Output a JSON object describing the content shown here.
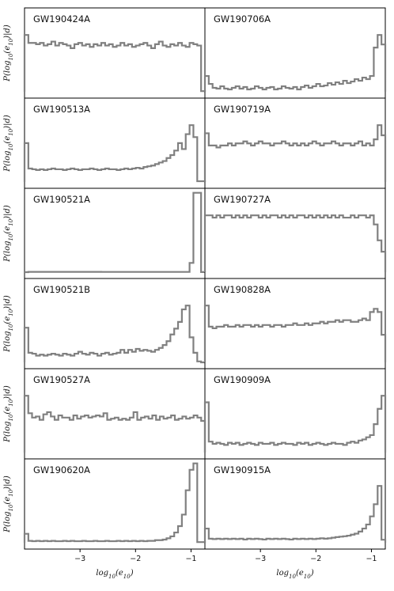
{
  "chart_data": [
    {
      "type": "step",
      "title": "GW190424A",
      "ylabel": "P(log10(e10)|d)",
      "x_edges_range": [
        -4.0,
        -0.75
      ],
      "values": [
        4.3,
        3.7,
        3.7,
        3.6,
        3.7,
        3.5,
        3.6,
        3.8,
        3.5,
        3.7,
        3.6,
        3.5,
        3.3,
        3.6,
        3.7,
        3.5,
        3.6,
        3.4,
        3.6,
        3.5,
        3.7,
        3.5,
        3.6,
        3.4,
        3.5,
        3.7,
        3.5,
        3.6,
        3.4,
        3.5,
        3.6,
        3.7,
        3.5,
        3.3,
        3.6,
        3.8,
        3.5,
        3.4,
        3.6,
        3.5,
        3.7,
        3.5,
        3.4,
        3.7,
        3.6,
        3.5,
        0.05
      ]
    },
    {
      "type": "step",
      "title": "GW190706A",
      "ylabel": "",
      "x_edges_range": [
        -4.0,
        -0.75
      ],
      "values": [
        1.0,
        0.5,
        0.25,
        0.2,
        0.35,
        0.2,
        0.15,
        0.25,
        0.35,
        0.2,
        0.3,
        0.15,
        0.2,
        0.35,
        0.25,
        0.15,
        0.25,
        0.3,
        0.15,
        0.2,
        0.35,
        0.25,
        0.2,
        0.3,
        0.15,
        0.3,
        0.4,
        0.25,
        0.35,
        0.5,
        0.35,
        0.4,
        0.55,
        0.45,
        0.6,
        0.5,
        0.7,
        0.55,
        0.65,
        0.8,
        0.7,
        0.9,
        0.8,
        1.0,
        2.8,
        3.6,
        3.0
      ]
    },
    {
      "type": "step",
      "title": "GW190513A",
      "ylabel": "P(log10(e10)|d)",
      "x_edges_range": [
        -4.0,
        -0.75
      ],
      "values": [
        2.6,
        0.9,
        0.85,
        0.8,
        0.85,
        0.8,
        0.85,
        0.9,
        0.85,
        0.85,
        0.8,
        0.85,
        0.9,
        0.85,
        0.8,
        0.85,
        0.85,
        0.9,
        0.85,
        0.8,
        0.85,
        0.9,
        0.85,
        0.85,
        0.8,
        0.85,
        0.9,
        0.85,
        0.9,
        0.95,
        0.9,
        1.0,
        1.05,
        1.1,
        1.2,
        1.3,
        1.4,
        1.6,
        1.8,
        2.1,
        2.6,
        2.2,
        3.2,
        3.8,
        3.0,
        0.05,
        0.05
      ]
    },
    {
      "type": "step",
      "title": "GW190719A",
      "ylabel": "",
      "x_edges_range": [
        -4.0,
        -0.75
      ],
      "values": [
        2.4,
        1.8,
        1.8,
        1.7,
        1.8,
        1.8,
        1.9,
        1.8,
        1.9,
        1.9,
        2.0,
        1.9,
        1.8,
        1.9,
        2.0,
        1.9,
        1.9,
        1.8,
        1.9,
        1.9,
        2.0,
        1.9,
        1.8,
        1.9,
        1.8,
        1.9,
        1.8,
        1.9,
        2.0,
        1.9,
        1.8,
        1.9,
        1.9,
        2.0,
        1.9,
        1.8,
        1.9,
        1.9,
        1.8,
        1.9,
        2.0,
        1.8,
        1.9,
        1.8,
        2.1,
        2.8,
        2.3
      ]
    },
    {
      "type": "step",
      "title": "GW190521A",
      "ylabel": "P(log10(e10)|d)",
      "x_edges_range": [
        -4.0,
        -0.75
      ],
      "values": [
        0.0,
        0.05,
        0.05,
        0.05,
        0.05,
        0.05,
        0.05,
        0.05,
        0.05,
        0.05,
        0.05,
        0.05,
        0.05,
        0.05,
        0.05,
        0.05,
        0.05,
        0.05,
        0.05,
        0.05,
        0.04,
        0.04,
        0.04,
        0.04,
        0.04,
        0.04,
        0.04,
        0.04,
        0.04,
        0.04,
        0.04,
        0.04,
        0.04,
        0.04,
        0.04,
        0.04,
        0.04,
        0.04,
        0.04,
        0.04,
        0.04,
        0.04,
        0.04,
        1.4,
        12.0,
        12.0,
        0.02
      ]
    },
    {
      "type": "step",
      "title": "GW190727A",
      "ylabel": "",
      "x_edges_range": [
        -4.0,
        -0.75
      ],
      "values": [
        2.5,
        2.5,
        2.4,
        2.5,
        2.4,
        2.5,
        2.5,
        2.4,
        2.5,
        2.4,
        2.5,
        2.4,
        2.5,
        2.5,
        2.4,
        2.5,
        2.4,
        2.5,
        2.5,
        2.4,
        2.5,
        2.4,
        2.5,
        2.4,
        2.5,
        2.5,
        2.4,
        2.5,
        2.4,
        2.5,
        2.4,
        2.5,
        2.4,
        2.5,
        2.4,
        2.5,
        2.4,
        2.4,
        2.5,
        2.4,
        2.5,
        2.5,
        2.4,
        2.5,
        2.1,
        1.4,
        0.9
      ]
    },
    {
      "type": "step",
      "title": "GW190521B",
      "ylabel": "P(log10(e10)|d)",
      "x_edges_range": [
        -4.0,
        -0.75
      ],
      "values": [
        3.6,
        1.0,
        0.9,
        0.7,
        0.8,
        0.7,
        0.8,
        0.9,
        0.8,
        0.7,
        0.9,
        0.8,
        0.7,
        0.9,
        1.1,
        0.9,
        0.8,
        1.0,
        0.9,
        0.7,
        0.9,
        1.0,
        0.8,
        0.9,
        1.0,
        1.3,
        1.0,
        1.3,
        1.1,
        1.4,
        1.2,
        1.3,
        1.2,
        1.1,
        1.3,
        1.5,
        1.8,
        2.2,
        2.9,
        3.5,
        4.2,
        5.5,
        5.9,
        2.6,
        1.0,
        0.1,
        0.0
      ]
    },
    {
      "type": "step",
      "title": "GW190828A",
      "ylabel": "",
      "x_edges_range": [
        -4.0,
        -0.75
      ],
      "values": [
        3.5,
        2.2,
        2.1,
        2.2,
        2.2,
        2.3,
        2.2,
        2.2,
        2.3,
        2.2,
        2.3,
        2.3,
        2.2,
        2.3,
        2.2,
        2.3,
        2.3,
        2.2,
        2.3,
        2.3,
        2.2,
        2.3,
        2.3,
        2.4,
        2.3,
        2.3,
        2.4,
        2.3,
        2.4,
        2.4,
        2.5,
        2.4,
        2.5,
        2.5,
        2.6,
        2.5,
        2.6,
        2.6,
        2.5,
        2.5,
        2.6,
        2.7,
        2.6,
        3.1,
        3.3,
        3.1,
        1.7
      ]
    },
    {
      "type": "step",
      "title": "GW190527A",
      "ylabel": "P(log10(e10)|d)",
      "x_edges_range": [
        -4.0,
        -0.75
      ],
      "values": [
        5.2,
        3.6,
        3.2,
        3.3,
        3.0,
        3.5,
        3.7,
        3.3,
        3.0,
        3.4,
        3.2,
        3.2,
        3.0,
        3.4,
        3.1,
        3.3,
        3.4,
        3.2,
        3.3,
        3.4,
        3.3,
        3.6,
        3.0,
        3.1,
        3.2,
        3.0,
        3.1,
        3.0,
        3.2,
        3.7,
        3.0,
        3.2,
        3.3,
        3.1,
        3.4,
        3.0,
        3.3,
        3.1,
        3.2,
        3.4,
        3.0,
        3.1,
        3.3,
        3.1,
        3.2,
        3.4,
        3.2,
        2.9
      ]
    },
    {
      "type": "step",
      "title": "GW190909A",
      "ylabel": "",
      "x_edges_range": [
        -4.0,
        -0.75
      ],
      "values": [
        2.3,
        0.5,
        0.4,
        0.45,
        0.4,
        0.35,
        0.45,
        0.4,
        0.45,
        0.35,
        0.4,
        0.45,
        0.4,
        0.35,
        0.45,
        0.4,
        0.4,
        0.45,
        0.35,
        0.4,
        0.45,
        0.4,
        0.4,
        0.35,
        0.45,
        0.4,
        0.45,
        0.35,
        0.4,
        0.45,
        0.4,
        0.35,
        0.4,
        0.45,
        0.4,
        0.4,
        0.35,
        0.45,
        0.5,
        0.45,
        0.55,
        0.6,
        0.7,
        0.8,
        1.3,
        2.0,
        2.6
      ]
    },
    {
      "type": "step",
      "title": "GW190620A",
      "ylabel": "P(log10(e10)|d)",
      "x_edges_range": [
        -4.0,
        -0.75
      ],
      "values": [
        0.7,
        0.15,
        0.12,
        0.15,
        0.12,
        0.15,
        0.12,
        0.15,
        0.12,
        0.12,
        0.15,
        0.12,
        0.15,
        0.12,
        0.12,
        0.15,
        0.12,
        0.12,
        0.15,
        0.12,
        0.12,
        0.15,
        0.12,
        0.12,
        0.15,
        0.12,
        0.15,
        0.12,
        0.15,
        0.12,
        0.15,
        0.12,
        0.15,
        0.15,
        0.2,
        0.2,
        0.25,
        0.35,
        0.5,
        0.8,
        1.3,
        2.2,
        4.1,
        5.7,
        6.2,
        0.05,
        0.05
      ]
    },
    {
      "type": "step",
      "title": "GW190915A",
      "ylabel": "",
      "x_edges_range": [
        -4.0,
        -0.75
      ],
      "values": [
        0.7,
        0.2,
        0.18,
        0.2,
        0.18,
        0.2,
        0.18,
        0.2,
        0.18,
        0.2,
        0.16,
        0.2,
        0.18,
        0.2,
        0.18,
        0.16,
        0.2,
        0.18,
        0.2,
        0.18,
        0.2,
        0.18,
        0.16,
        0.2,
        0.18,
        0.2,
        0.18,
        0.2,
        0.18,
        0.2,
        0.22,
        0.2,
        0.22,
        0.25,
        0.28,
        0.3,
        0.32,
        0.35,
        0.4,
        0.45,
        0.55,
        0.7,
        0.9,
        1.3,
        1.9,
        2.8,
        0.15
      ]
    }
  ],
  "x_axis": {
    "xlabel": "log10(e10)",
    "ticks": [
      -3,
      -2,
      -1
    ],
    "tick_labels": [
      "−3",
      "−2",
      "−1"
    ],
    "range": [
      -4.0,
      -0.75
    ]
  },
  "style": {
    "line_color": "#808080"
  }
}
